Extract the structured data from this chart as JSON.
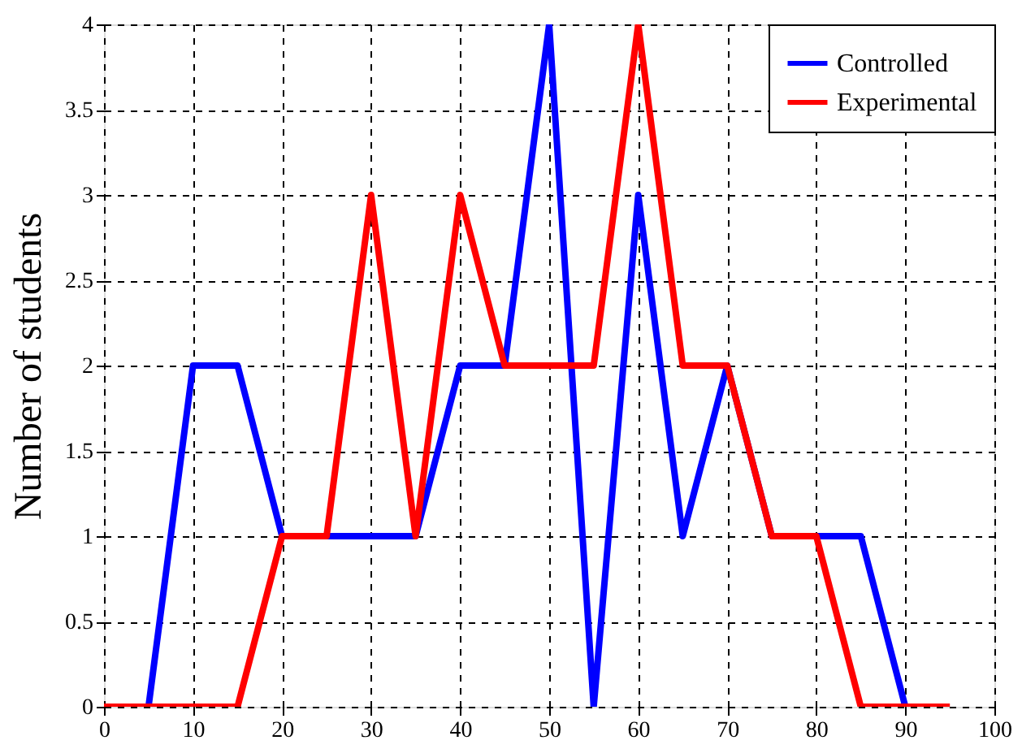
{
  "chart_data": {
    "type": "line",
    "ylabel": "Number of students",
    "x": [
      0,
      5,
      10,
      15,
      20,
      25,
      30,
      35,
      40,
      45,
      50,
      55,
      60,
      65,
      70,
      75,
      80,
      85,
      90,
      95
    ],
    "series": [
      {
        "name": "Controlled",
        "color": "#0000ff",
        "values": [
          0,
          0,
          2,
          2,
          1,
          1,
          1,
          1,
          2,
          2,
          4,
          0,
          3,
          1,
          2,
          1,
          1,
          1,
          0,
          null
        ]
      },
      {
        "name": "Experimental",
        "color": "#ff0000",
        "values": [
          0,
          0,
          0,
          0,
          1,
          1,
          3,
          1,
          3,
          2,
          2,
          2,
          4,
          2,
          2,
          1,
          1,
          0,
          0,
          0
        ]
      }
    ],
    "xlim": [
      0,
      100
    ],
    "xticks": [
      0,
      10,
      20,
      30,
      40,
      50,
      60,
      70,
      80,
      90,
      100
    ],
    "ylim": [
      0,
      4
    ],
    "yticks": [
      0,
      0.5,
      1,
      1.5,
      2,
      2.5,
      3,
      3.5,
      4
    ],
    "grid": true,
    "legend": "top right",
    "marker": "none",
    "line_style": "solid"
  }
}
